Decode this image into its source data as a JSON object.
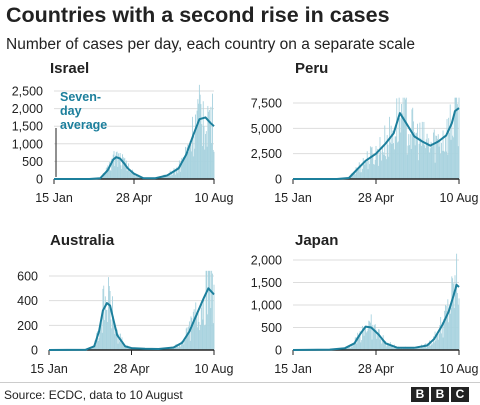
{
  "title": "Countries with a second rise in cases",
  "subtitle": "Number of cases per day, each country on a separate scale",
  "footer": {
    "source": "Source: ECDC, data to 10 August",
    "logo": [
      "B",
      "B",
      "C"
    ]
  },
  "colors": {
    "line": "#1c7f9c",
    "bars": "#a9d3df",
    "axis": "#222222",
    "grid": "#dddddd",
    "text": "#222222"
  },
  "chart_data": [
    {
      "type": "line",
      "title": "Israel",
      "annotation": "Seven-day average",
      "x_ticks": [
        "15 Jan",
        "28 Apr",
        "10 Aug"
      ],
      "x_range": [
        "15 Jan",
        "10 Aug"
      ],
      "ylim": [
        0,
        2500
      ],
      "y_ticks": [
        0,
        500,
        1000,
        1500,
        2000,
        2500
      ],
      "y_tick_labels": [
        "0",
        "500",
        "1,000",
        "1,500",
        "2,000",
        "2,500"
      ],
      "grid": true,
      "series": [
        {
          "x": [
            "15 Jan",
            "1 Mar",
            "15 Mar",
            "25 Mar",
            "1 Apr",
            "5 Apr",
            "10 Apr",
            "15 Apr",
            "20 Apr",
            "28 Apr",
            "10 May",
            "25 May",
            "10 Jun",
            "25 Jun",
            "5 Jul",
            "15 Jul",
            "22 Jul",
            "30 Jul",
            "5 Aug",
            "10 Aug"
          ],
          "values": [
            0,
            0,
            20,
            250,
            550,
            620,
            580,
            450,
            300,
            150,
            25,
            20,
            100,
            300,
            700,
            1300,
            1700,
            1750,
            1600,
            1500
          ]
        }
      ]
    },
    {
      "type": "line",
      "title": "Peru",
      "x_ticks": [
        "15 Jan",
        "28 Apr",
        "10 Aug"
      ],
      "x_range": [
        "15 Jan",
        "10 Aug"
      ],
      "ylim": [
        0,
        7500
      ],
      "y_ticks": [
        0,
        2500,
        5000,
        7500
      ],
      "y_tick_labels": [
        "0",
        "2,500",
        "5,000",
        "7,500"
      ],
      "grid": true,
      "series": [
        {
          "x": [
            "15 Jan",
            "10 Mar",
            "25 Mar",
            "5 Apr",
            "15 Apr",
            "28 Apr",
            "10 May",
            "20 May",
            "28 May",
            "5 Jun",
            "15 Jun",
            "25 Jun",
            "5 Jul",
            "15 Jul",
            "25 Jul",
            "1 Aug",
            "5 Aug",
            "10 Aug"
          ],
          "values": [
            0,
            0,
            100,
            1000,
            1800,
            2500,
            3500,
            4500,
            6500,
            5500,
            4200,
            3700,
            3300,
            3700,
            4300,
            5500,
            6700,
            7000
          ]
        }
      ]
    },
    {
      "type": "line",
      "title": "Australia",
      "x_ticks": [
        "15 Jan",
        "28 Apr",
        "10 Aug"
      ],
      "x_range": [
        "15 Jan",
        "10 Aug"
      ],
      "ylim": [
        0,
        600
      ],
      "y_ticks": [
        0,
        200,
        400,
        600
      ],
      "y_tick_labels": [
        "0",
        "200",
        "400",
        "600"
      ],
      "grid": true,
      "series": [
        {
          "x": [
            "15 Jan",
            "1 Mar",
            "12 Mar",
            "18 Mar",
            "23 Mar",
            "28 Mar",
            "1 Apr",
            "5 Apr",
            "10 Apr",
            "20 Apr",
            "28 Apr",
            "15 May",
            "1 Jun",
            "20 Jun",
            "1 Jul",
            "10 Jul",
            "20 Jul",
            "28 Jul",
            "3 Aug",
            "10 Aug"
          ],
          "values": [
            0,
            2,
            30,
            150,
            320,
            380,
            360,
            250,
            120,
            30,
            15,
            10,
            8,
            20,
            60,
            150,
            300,
            420,
            500,
            450
          ]
        }
      ]
    },
    {
      "type": "line",
      "title": "Japan",
      "x_ticks": [
        "15 Jan",
        "28 Apr",
        "10 Aug"
      ],
      "x_range": [
        "15 Jan",
        "10 Aug"
      ],
      "ylim": [
        0,
        2000
      ],
      "y_ticks": [
        0,
        500,
        1000,
        1500,
        2000
      ],
      "y_tick_labels": [
        "0",
        "500",
        "1,000",
        "1,500",
        "2,000"
      ],
      "grid": true,
      "series": [
        {
          "x": [
            "15 Jan",
            "1 Mar",
            "20 Mar",
            "1 Apr",
            "8 Apr",
            "15 Apr",
            "22 Apr",
            "1 May",
            "10 May",
            "25 May",
            "15 Jun",
            "1 Jul",
            "10 Jul",
            "20 Jul",
            "28 Jul",
            "3 Aug",
            "7 Aug",
            "10 Aug"
          ],
          "values": [
            0,
            10,
            40,
            150,
            350,
            520,
            500,
            350,
            150,
            50,
            50,
            100,
            250,
            550,
            850,
            1200,
            1450,
            1400
          ]
        }
      ]
    }
  ]
}
